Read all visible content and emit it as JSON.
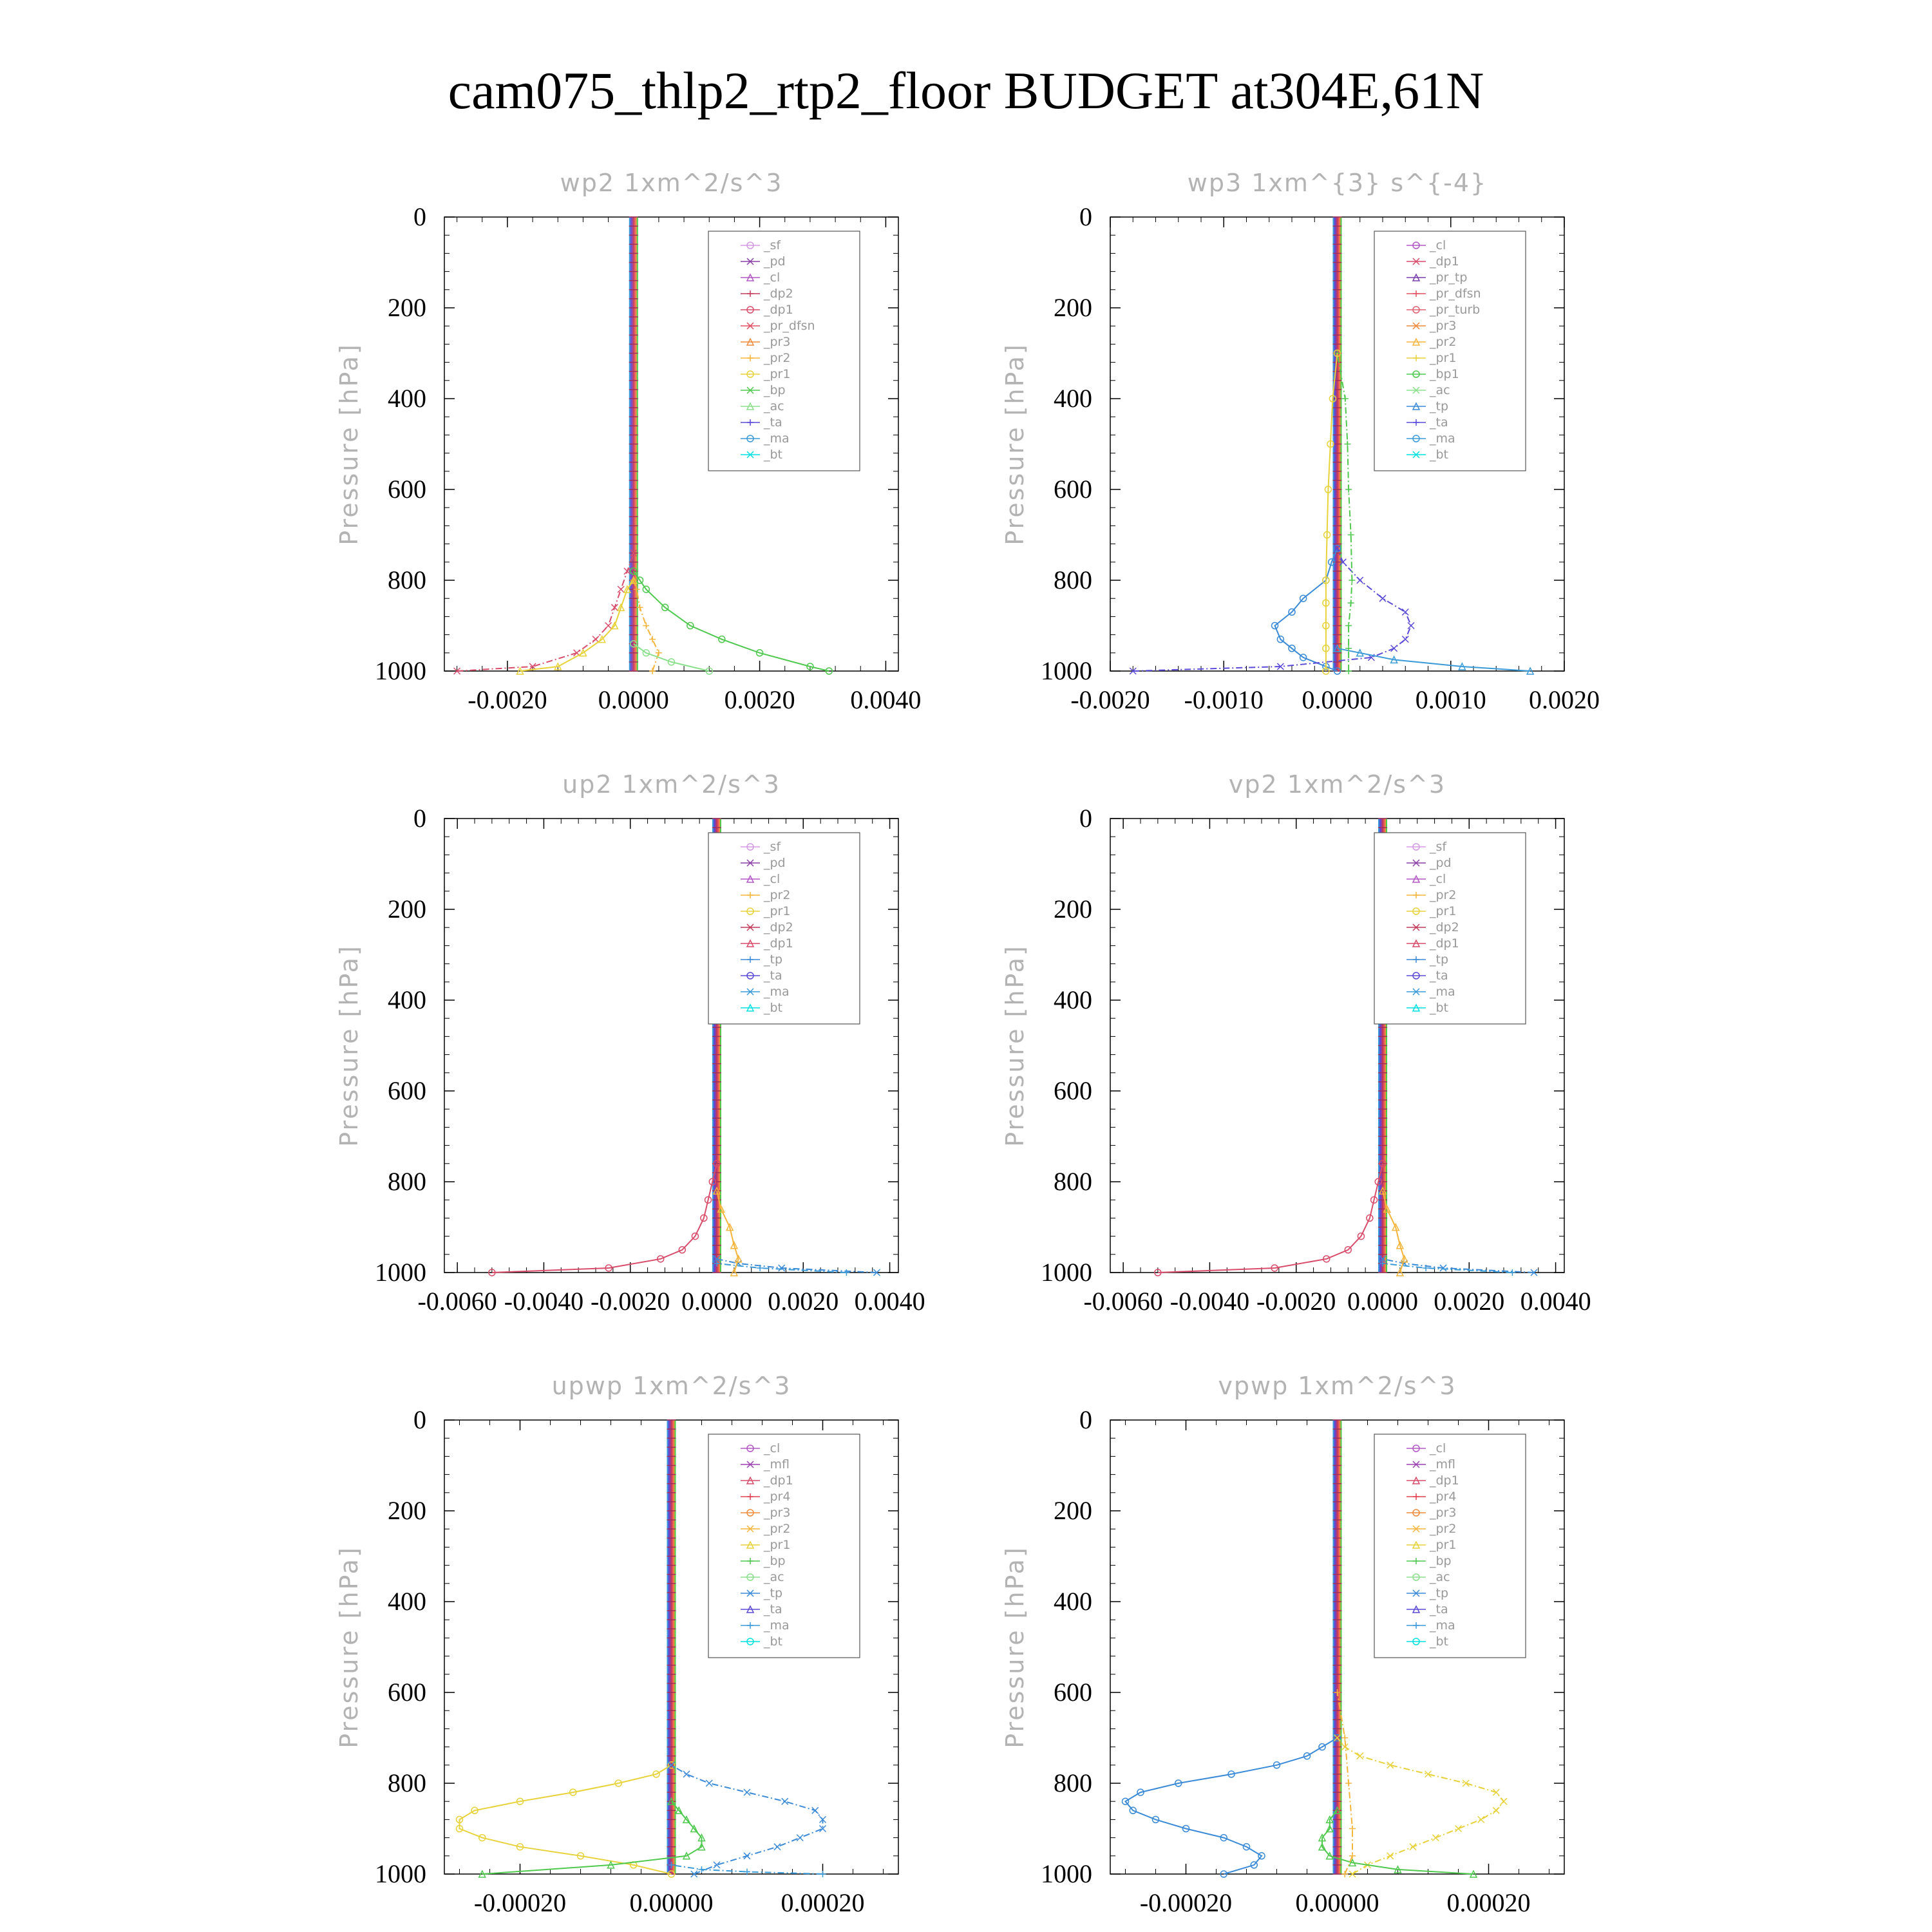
{
  "title": "cam075_thlp2_rtp2_floor  BUDGET at304E,61N",
  "colors": {
    "_sf": "#d59ae6",
    "_pd": "#8a3fa6",
    "_cl": "#b357c6",
    "_dp2": "#c23a5a",
    "_dp1": "#d94c6a",
    "_pr_dfsn": "#e05060",
    "_pr3": "#f08a3a",
    "_pr2": "#f5b43a",
    "_pr1": "#e8d23a",
    "_bp": "#4ec94e",
    "_ac": "#8be08b",
    "_ta": "#5a4ad8",
    "_ma": "#3a9ad8",
    "_bt": "#00e0e0",
    "_tp": "#3a8ad8",
    "_pr_tp": "#7a3fb0",
    "_pr_turb": "#e06070",
    "_bp1": "#4ec94e",
    "_mfl": "#9a3fb0",
    "_pr4": "#e04050"
  },
  "chart_data": [
    {
      "type": "line",
      "title": "wp2   1xm^2/s^3",
      "ylabel": "Pressure [hPa]",
      "xticks": [
        "-0.0020",
        "0.0000",
        "0.0020",
        "0.0040"
      ],
      "xtick_values": [
        -0.002,
        0.0,
        0.002,
        0.004
      ],
      "xlim": [
        -0.003,
        0.0042
      ],
      "ylim": [
        1000,
        0
      ],
      "yticks": [
        "0",
        "200",
        "400",
        "600",
        "800",
        "1000"
      ],
      "legend": [
        "_sf",
        "_pd",
        "_cl",
        "_dp2",
        "_dp1",
        "_pr_dfsn",
        "_pr3",
        "_pr2",
        "_pr1",
        "_bp",
        "_ac",
        "_ta",
        "_ma",
        "_bt"
      ],
      "legend_position": "top-right",
      "series": [
        {
          "name": "_bp",
          "p": [
            1000,
            990,
            960,
            930,
            900,
            860,
            820,
            800,
            780
          ],
          "x": [
            0.0031,
            0.0028,
            0.002,
            0.0014,
            0.0009,
            0.0005,
            0.0002,
            0.0001,
            0.0
          ]
        },
        {
          "name": "_dp1",
          "p": [
            1000,
            990,
            960,
            930,
            900,
            860,
            820,
            780,
            740
          ],
          "x": [
            -0.0028,
            -0.0016,
            -0.0009,
            -0.0006,
            -0.0004,
            -0.0003,
            -0.0002,
            -0.0001,
            0.0
          ]
        },
        {
          "name": "_pr1",
          "p": [
            1000,
            990,
            960,
            930,
            900,
            860,
            820,
            800
          ],
          "x": [
            -0.0018,
            -0.0012,
            -0.0008,
            -0.0005,
            -0.0003,
            -0.0002,
            -0.0001,
            0.0
          ]
        },
        {
          "name": "_pr2",
          "p": [
            1000,
            960,
            930,
            900,
            860,
            820,
            800
          ],
          "x": [
            0.0003,
            0.0004,
            0.0003,
            0.0002,
            0.0001,
            5e-05,
            0.0
          ]
        },
        {
          "name": "_ac",
          "p": [
            1000,
            980,
            960,
            940
          ],
          "x": [
            0.0012,
            0.0006,
            0.0002,
            0.0
          ]
        }
      ]
    },
    {
      "type": "line",
      "title": "wp3   1xm^{3} s^{-4}",
      "ylabel": "Pressure [hPa]",
      "xticks": [
        "-0.0020",
        "-0.0010",
        "0.0000",
        "0.0010",
        "0.0020"
      ],
      "xtick_values": [
        -0.002,
        -0.001,
        0.0,
        0.001,
        0.002
      ],
      "xlim": [
        -0.002,
        0.002
      ],
      "ylim": [
        1000,
        0
      ],
      "yticks": [
        "0",
        "200",
        "400",
        "600",
        "800",
        "1000"
      ],
      "legend": [
        "_cl",
        "_dp1",
        "_pr_tp",
        "_pr_dfsn",
        "_pr_turb",
        "_pr3",
        "_pr2",
        "_pr1",
        "_bp1",
        "_ac",
        "_tp",
        "_ta",
        "_ma",
        "_bt"
      ],
      "legend_position": "top-right",
      "series": [
        {
          "name": "_tp",
          "p": [
            1000,
            990,
            970,
            950,
            930,
            900,
            870,
            840,
            800,
            760,
            730
          ],
          "x": [
            0.0,
            -0.0001,
            -0.0003,
            -0.0004,
            -0.0005,
            -0.00055,
            -0.0004,
            -0.0003,
            -0.0001,
            -5e-05,
            0.0
          ]
        },
        {
          "name": "_ta",
          "p": [
            1000,
            990,
            970,
            950,
            930,
            900,
            870,
            840,
            800,
            760,
            730
          ],
          "x": [
            -0.0018,
            -0.0005,
            0.0003,
            0.0005,
            0.0006,
            0.00065,
            0.0006,
            0.0004,
            0.0002,
            5e-05,
            0.0
          ]
        },
        {
          "name": "_ma",
          "p": [
            1000,
            990,
            975,
            960,
            950
          ],
          "x": [
            0.0017,
            0.0011,
            0.0005,
            0.0002,
            0.0
          ]
        },
        {
          "name": "_bp1",
          "p": [
            1000,
            950,
            900,
            850,
            800,
            700,
            600,
            500,
            400,
            300
          ],
          "x": [
            0.0001,
            0.0001,
            0.0001,
            0.00012,
            0.00013,
            0.00012,
            0.0001,
            9e-05,
            7e-05,
            0.0
          ]
        },
        {
          "name": "_pr1",
          "p": [
            1000,
            950,
            900,
            850,
            800,
            700,
            600,
            500,
            400,
            300
          ],
          "x": [
            -0.0001,
            -0.0001,
            -0.0001,
            -0.0001,
            -0.0001,
            -9e-05,
            -8e-05,
            -6e-05,
            -4e-05,
            0.0
          ]
        }
      ]
    },
    {
      "type": "line",
      "title": "up2   1xm^2/s^3",
      "ylabel": "Pressure [hPa]",
      "xticks": [
        "-0.0060",
        "-0.0040",
        "-0.0020",
        "0.0000",
        "0.0020",
        "0.0040"
      ],
      "xtick_values": [
        -0.006,
        -0.004,
        -0.002,
        0.0,
        0.002,
        0.004
      ],
      "xlim": [
        -0.0063,
        0.0042
      ],
      "ylim": [
        1000,
        0
      ],
      "yticks": [
        "0",
        "200",
        "400",
        "600",
        "800",
        "1000"
      ],
      "legend": [
        "_sf",
        "_pd",
        "_cl",
        "_pr2",
        "_pr1",
        "_dp2",
        "_dp1",
        "_tp",
        "_ta",
        "_ma",
        "_bt"
      ],
      "legend_position": "top-right",
      "series": [
        {
          "name": "_dp1",
          "p": [
            1000,
            990,
            970,
            950,
            920,
            880,
            840,
            800,
            760
          ],
          "x": [
            -0.0052,
            -0.0025,
            -0.0013,
            -0.0008,
            -0.0005,
            -0.0003,
            -0.0002,
            -0.0001,
            0.0
          ]
        },
        {
          "name": "_tp",
          "p": [
            1000,
            990,
            980,
            970
          ],
          "x": [
            0.0037,
            0.0015,
            0.0005,
            0.0
          ]
        },
        {
          "name": "_pr2",
          "p": [
            1000,
            970,
            940,
            900,
            860,
            820
          ],
          "x": [
            0.0004,
            0.0005,
            0.0004,
            0.0003,
            0.0001,
            0.0
          ]
        },
        {
          "name": "_ma",
          "p": [
            1000,
            990,
            980
          ],
          "x": [
            0.003,
            0.001,
            0.0
          ]
        }
      ]
    },
    {
      "type": "line",
      "title": "vp2   1xm^2/s^3",
      "ylabel": "Pressure [hPa]",
      "xticks": [
        "-0.0060",
        "-0.0040",
        "-0.0020",
        "0.0000",
        "0.0020",
        "0.0040"
      ],
      "xtick_values": [
        -0.006,
        -0.004,
        -0.002,
        0.0,
        0.002,
        0.004
      ],
      "xlim": [
        -0.0063,
        0.0042
      ],
      "ylim": [
        1000,
        0
      ],
      "yticks": [
        "0",
        "200",
        "400",
        "600",
        "800",
        "1000"
      ],
      "legend": [
        "_sf",
        "_pd",
        "_cl",
        "_pr2",
        "_pr1",
        "_dp2",
        "_dp1",
        "_tp",
        "_ta",
        "_ma",
        "_bt"
      ],
      "legend_position": "top-right",
      "series": [
        {
          "name": "_dp1",
          "p": [
            1000,
            990,
            970,
            950,
            920,
            880,
            840,
            800,
            760
          ],
          "x": [
            -0.0052,
            -0.0025,
            -0.0013,
            -0.0008,
            -0.0005,
            -0.0003,
            -0.0002,
            -0.0001,
            0.0
          ]
        },
        {
          "name": "_tp",
          "p": [
            1000,
            990,
            980,
            970
          ],
          "x": [
            0.0035,
            0.0014,
            0.0005,
            0.0
          ]
        },
        {
          "name": "_pr2",
          "p": [
            1000,
            970,
            940,
            900,
            860,
            820
          ],
          "x": [
            0.0004,
            0.0005,
            0.0004,
            0.0003,
            0.0001,
            0.0
          ]
        },
        {
          "name": "_ma",
          "p": [
            1000,
            990,
            980
          ],
          "x": [
            0.003,
            0.001,
            0.0
          ]
        }
      ]
    },
    {
      "type": "line",
      "title": "upwp   1xm^2/s^3",
      "ylabel": "Pressure [hPa]",
      "xticks": [
        "-0.00020",
        "0.00000",
        "0.00020"
      ],
      "xtick_values": [
        -0.0002,
        0.0,
        0.0002
      ],
      "xlim": [
        -0.0003,
        0.0003
      ],
      "ylim": [
        1000,
        0
      ],
      "yticks": [
        "0",
        "200",
        "400",
        "600",
        "800",
        "1000"
      ],
      "legend": [
        "_cl",
        "_mfl",
        "_dp1",
        "_pr4",
        "_pr3",
        "_pr2",
        "_pr1",
        "_bp",
        "_ac",
        "_tp",
        "_ta",
        "_ma",
        "_bt"
      ],
      "legend_position": "top-right",
      "series": [
        {
          "name": "_pr1",
          "p": [
            1000,
            980,
            960,
            940,
            920,
            900,
            880,
            860,
            840,
            820,
            800,
            780,
            760
          ],
          "x": [
            0.0,
            -5e-05,
            -0.00012,
            -0.0002,
            -0.00025,
            -0.00028,
            -0.00028,
            -0.00026,
            -0.0002,
            -0.00013,
            -7e-05,
            -2e-05,
            0.0
          ]
        },
        {
          "name": "_tp",
          "p": [
            1000,
            980,
            960,
            940,
            920,
            900,
            880,
            860,
            840,
            820,
            800,
            780,
            760
          ],
          "x": [
            3e-05,
            6e-05,
            0.0001,
            0.00014,
            0.00017,
            0.0002,
            0.0002,
            0.00019,
            0.00015,
            0.0001,
            5e-05,
            2e-05,
            0.0
          ]
        },
        {
          "name": "_bp",
          "p": [
            1000,
            980,
            960,
            940,
            920,
            900,
            880,
            860,
            840
          ],
          "x": [
            -0.00025,
            -8e-05,
            2e-05,
            4e-05,
            4e-05,
            3e-05,
            2e-05,
            1e-05,
            0.0
          ]
        },
        {
          "name": "_ma",
          "p": [
            1000,
            995,
            990,
            980
          ],
          "x": [
            0.0002,
            0.0001,
            4e-05,
            0.0
          ]
        }
      ]
    },
    {
      "type": "line",
      "title": "vpwp   1xm^2/s^3",
      "ylabel": "Pressure [hPa]",
      "xticks": [
        "-0.00020",
        "0.00000",
        "0.00020"
      ],
      "xtick_values": [
        -0.0002,
        0.0,
        0.0002
      ],
      "xlim": [
        -0.0003,
        0.0003
      ],
      "ylim": [
        1000,
        0
      ],
      "yticks": [
        "0",
        "200",
        "400",
        "600",
        "800",
        "1000"
      ],
      "legend": [
        "_cl",
        "_mfl",
        "_dp1",
        "_pr4",
        "_pr3",
        "_pr2",
        "_pr1",
        "_bp",
        "_ac",
        "_tp",
        "_ta",
        "_ma",
        "_bt"
      ],
      "legend_position": "top-right",
      "series": [
        {
          "name": "_tp",
          "p": [
            1000,
            980,
            960,
            940,
            920,
            900,
            880,
            860,
            840,
            820,
            800,
            780,
            760,
            740,
            720,
            700
          ],
          "x": [
            -0.00015,
            -0.00011,
            -0.0001,
            -0.00012,
            -0.00015,
            -0.0002,
            -0.00024,
            -0.00027,
            -0.00028,
            -0.00026,
            -0.00021,
            -0.00014,
            -8e-05,
            -4e-05,
            -2e-05,
            0.0
          ]
        },
        {
          "name": "_pr1",
          "p": [
            1000,
            980,
            960,
            940,
            920,
            900,
            880,
            860,
            840,
            820,
            800,
            780,
            760,
            740,
            720,
            700
          ],
          "x": [
            2e-05,
            4e-05,
            7e-05,
            0.0001,
            0.00013,
            0.00016,
            0.00019,
            0.00021,
            0.00022,
            0.00021,
            0.00017,
            0.00012,
            7e-05,
            3e-05,
            1e-05,
            0.0
          ]
        },
        {
          "name": "_bp",
          "p": [
            1000,
            990,
            975,
            960,
            940,
            920,
            900,
            880,
            860
          ],
          "x": [
            0.00018,
            8e-05,
            2e-05,
            -1e-05,
            -2e-05,
            -2e-05,
            -1e-05,
            -1e-05,
            0.0
          ]
        },
        {
          "name": "_pr2",
          "p": [
            1000,
            960,
            900,
            800,
            700,
            600
          ],
          "x": [
            1e-05,
            2e-05,
            2e-05,
            1.5e-05,
            1e-05,
            0.0
          ]
        }
      ]
    }
  ]
}
